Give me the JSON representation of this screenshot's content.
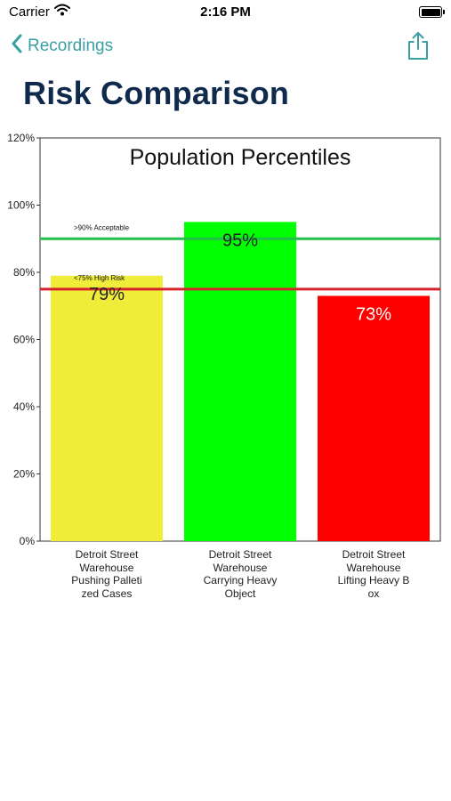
{
  "status_bar": {
    "carrier": "Carrier",
    "time": "2:16 PM"
  },
  "nav": {
    "back_label": "Recordings"
  },
  "page": {
    "title": "Risk Comparison"
  },
  "colors": {
    "accent": "#3a9ea5",
    "title": "#0f2a4c",
    "acceptable_line": "#22c04a",
    "high_risk_line": "#d8232a"
  },
  "chart_data": {
    "type": "bar",
    "title": "Population Percentiles",
    "categories": [
      "Detroit Street\nWarehouse\nPushing Palleti\nzed Cases",
      "Detroit Street\nWarehouse\nCarrying Heavy\nObject",
      "Detroit Street\nWarehouse\nLifting Heavy B\nox"
    ],
    "values": [
      79,
      95,
      73
    ],
    "data_labels": [
      "79%",
      "95%",
      "73%"
    ],
    "bar_colors": [
      "#f0ec3a",
      "#00ff00",
      "#ff0000"
    ],
    "data_label_colors": [
      "#222222",
      "#222222",
      "#ffffff"
    ],
    "ylim": [
      0,
      120
    ],
    "yticks": [
      "0%",
      "20%",
      "40%",
      "60%",
      "80%",
      "100%",
      "120%"
    ],
    "ytick_values": [
      0,
      20,
      40,
      60,
      80,
      100,
      120
    ],
    "reference_lines": [
      {
        "label": ">90% Acceptable",
        "value": 90,
        "color": "#22c04a"
      },
      {
        "label": "<75% High Risk",
        "value": 75,
        "color": "#d8232a"
      }
    ],
    "grid": false
  }
}
